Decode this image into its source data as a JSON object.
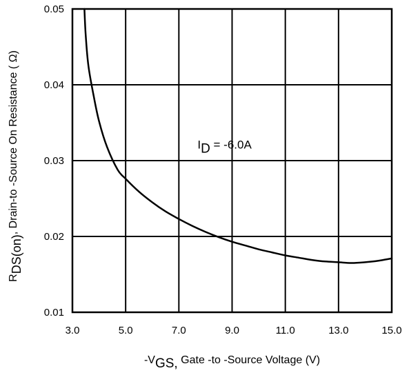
{
  "chart_data": {
    "type": "line",
    "xlabel": {
      "prefix": "-V",
      "sub": "GS,",
      "rest": " Gate -to -Source Voltage  (V)"
    },
    "ylabel": {
      "prefix": "R",
      "sub": "DS(on)",
      "rest": ",   Drain-to -Source On Resistance ( Ω)"
    },
    "xlim": [
      3.0,
      15.0
    ],
    "ylim": [
      0.01,
      0.05
    ],
    "x_ticks": [
      3.0,
      5.0,
      7.0,
      9.0,
      11.0,
      13.0,
      15.0
    ],
    "x_tick_labels": [
      "3.0",
      "5.0",
      "7.0",
      "9.0",
      "11.0",
      "13.0",
      "15.0"
    ],
    "y_ticks": [
      0.01,
      0.02,
      0.03,
      0.04,
      0.05
    ],
    "y_tick_labels": [
      "0.01",
      "0.02",
      "0.03",
      "0.04",
      "0.05"
    ],
    "grid": true,
    "annotations": [
      {
        "prefix": "I",
        "sub": "D",
        "rest": " = -6.0A",
        "x": 7.7,
        "y": 0.0316
      }
    ],
    "series": [
      {
        "x": [
          3.45,
          3.5,
          3.6,
          3.8,
          4.0,
          4.3,
          4.7,
          5.0,
          5.5,
          6.0,
          6.5,
          7.0,
          7.5,
          8.0,
          8.5,
          9.0,
          9.5,
          10.0,
          10.5,
          11.0,
          11.5,
          12.0,
          12.5,
          13.0,
          13.5,
          14.0,
          14.5,
          15.0
        ],
        "y": [
          0.05,
          0.0465,
          0.0425,
          0.0385,
          0.0352,
          0.0318,
          0.0288,
          0.0276,
          0.0259,
          0.0245,
          0.0233,
          0.0223,
          0.0214,
          0.0206,
          0.0199,
          0.0193,
          0.0188,
          0.0183,
          0.0179,
          0.0175,
          0.0172,
          0.0169,
          0.0167,
          0.0166,
          0.0165,
          0.0166,
          0.0168,
          0.0171
        ]
      }
    ]
  }
}
